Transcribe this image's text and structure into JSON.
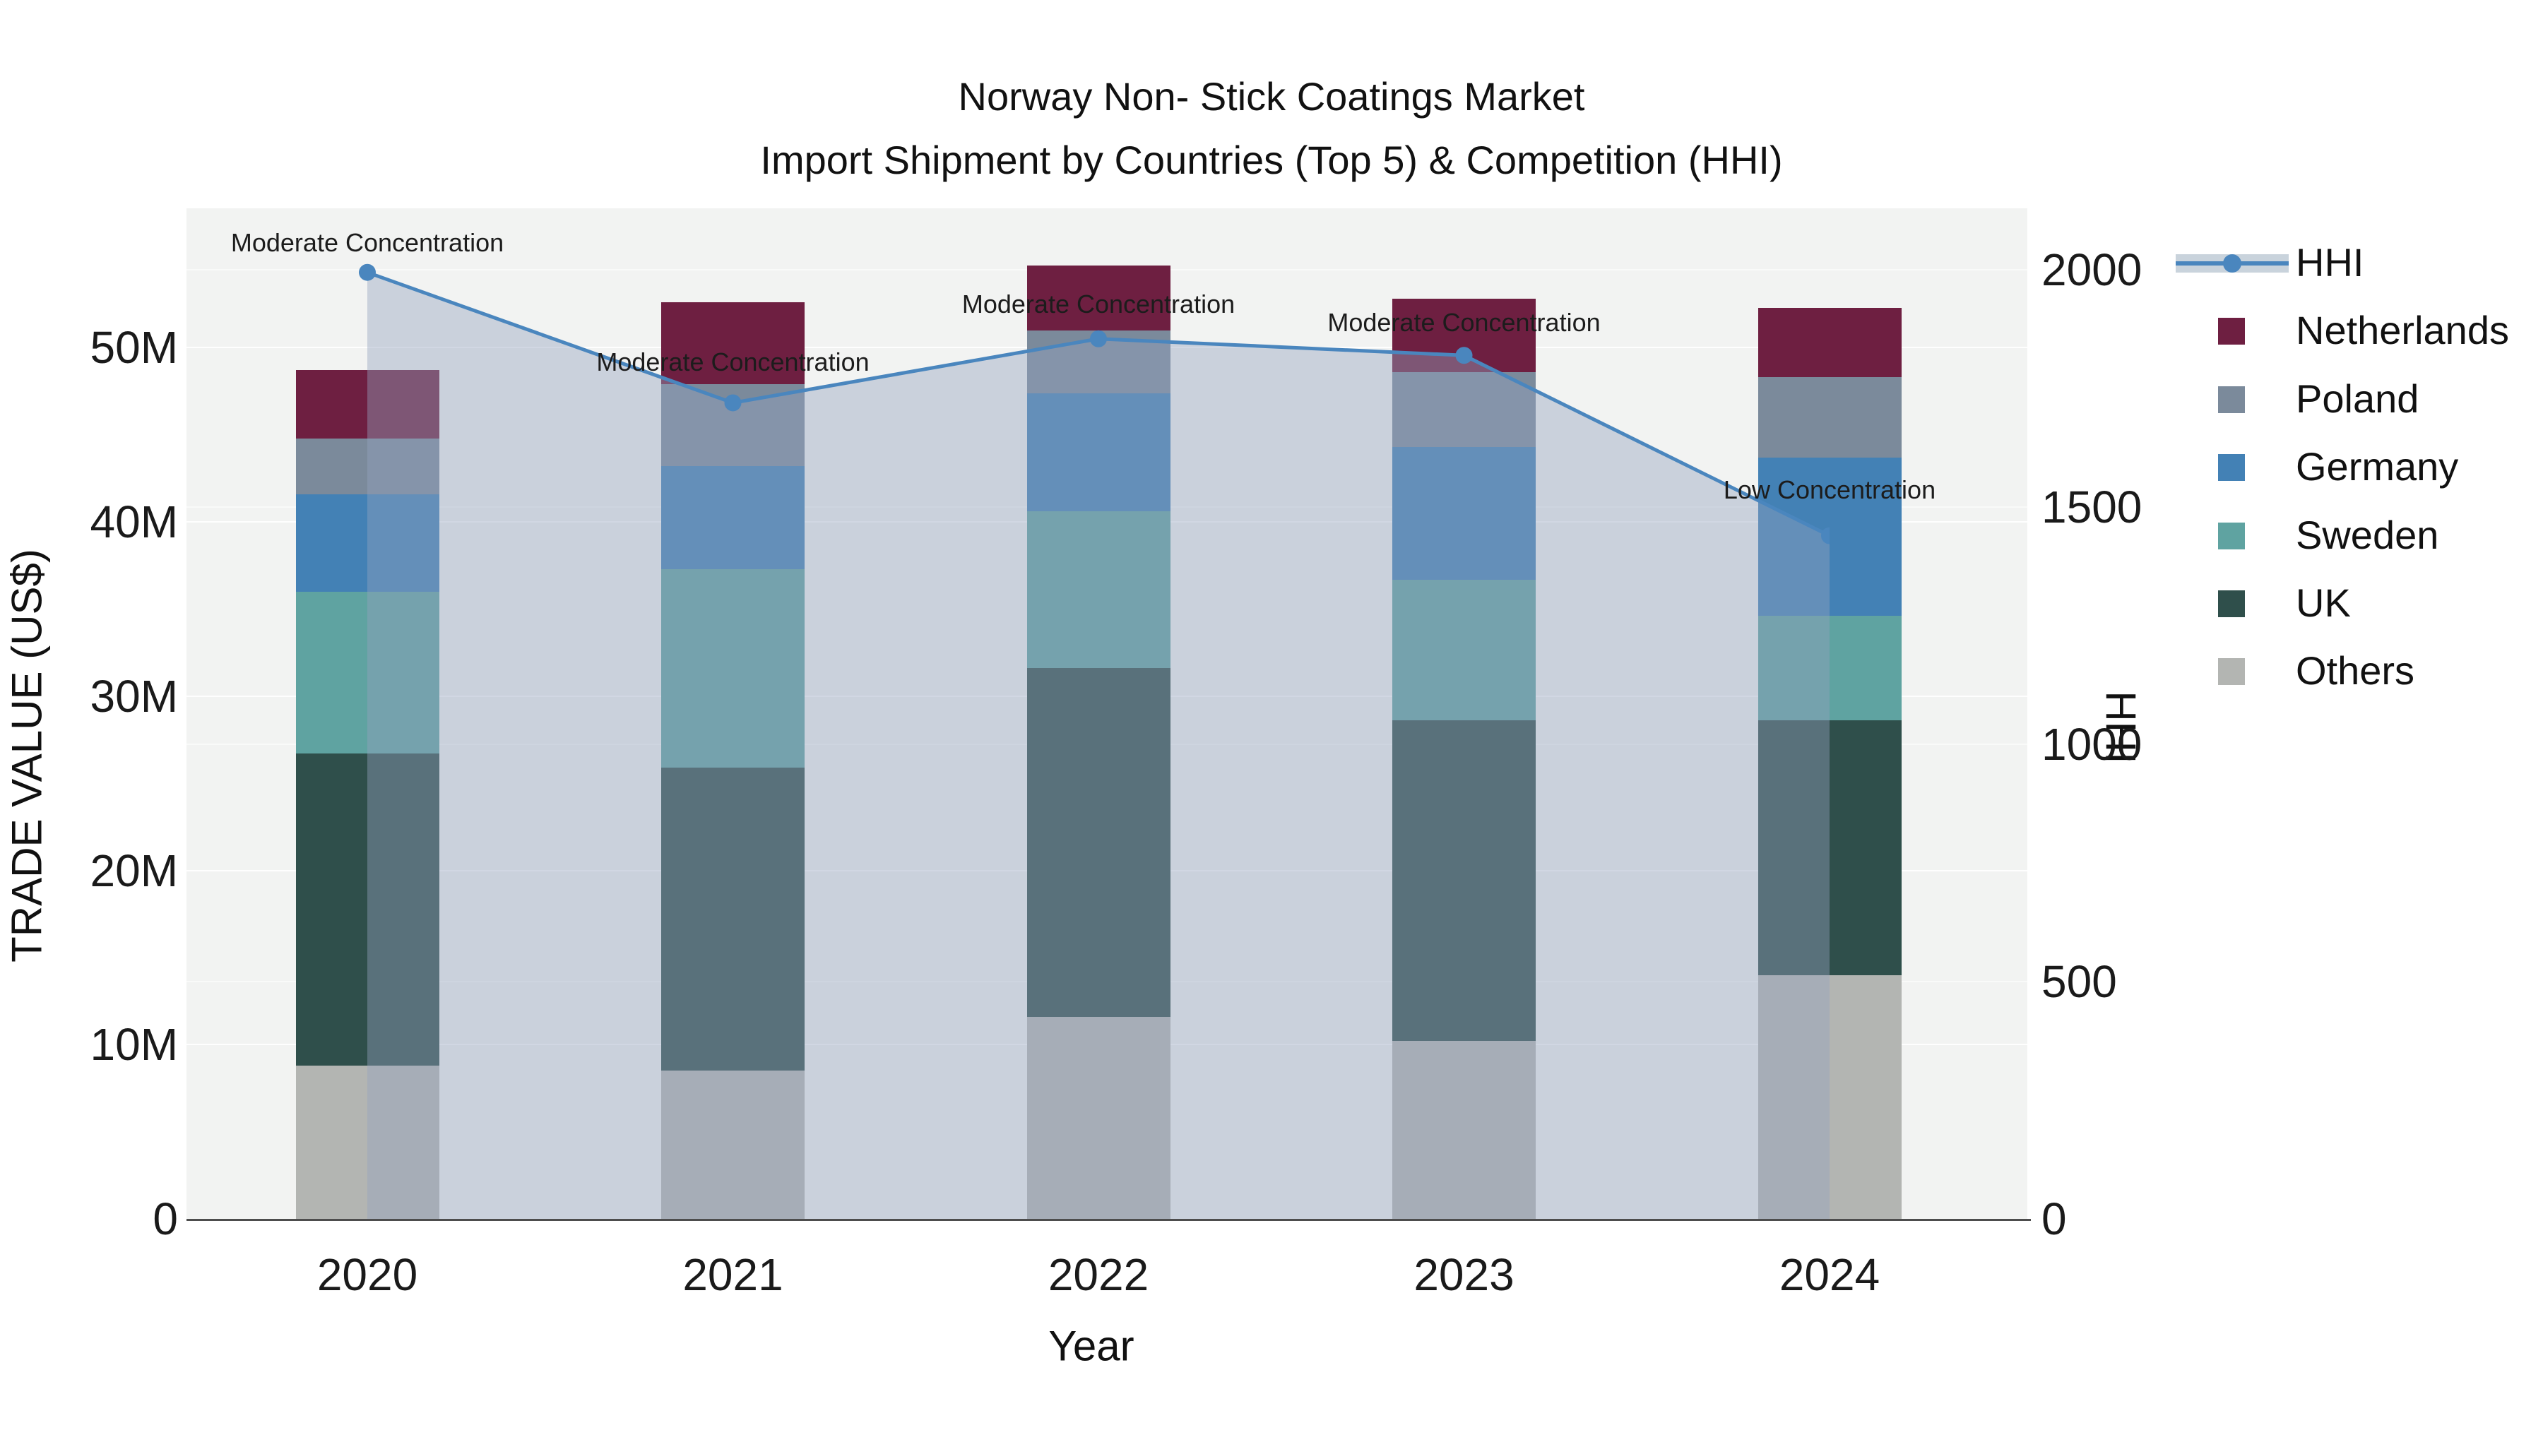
{
  "title": {
    "line1": "Norway Non- Stick Coatings Market",
    "line2": "Import Shipment by Countries (Top 5) & Competition (HHI)"
  },
  "chart_data": {
    "type": "combo-stacked-bar-line",
    "categories": [
      "2020",
      "2021",
      "2022",
      "2023",
      "2024"
    ],
    "bar_unit": "M US$",
    "bar_series": [
      {
        "name": "Others",
        "color": "#b3b5b2",
        "values": [
          8.8,
          8.5,
          11.6,
          10.2,
          14.0
        ]
      },
      {
        "name": "UK",
        "color": "#2f4f4b",
        "values": [
          17.9,
          17.4,
          20.0,
          18.4,
          14.6
        ]
      },
      {
        "name": "Sweden",
        "color": "#5fa3a1",
        "values": [
          9.3,
          11.4,
          9.0,
          8.1,
          6.0
        ]
      },
      {
        "name": "Germany",
        "color": "#4381b5",
        "values": [
          5.6,
          5.9,
          6.8,
          7.6,
          9.1
        ]
      },
      {
        "name": "Poland",
        "color": "#7b8a9b",
        "values": [
          3.2,
          4.7,
          3.6,
          4.3,
          4.6
        ]
      },
      {
        "name": "Netherlands",
        "color": "#6e1f41",
        "values": [
          3.9,
          4.7,
          3.7,
          4.2,
          4.0
        ]
      }
    ],
    "line_series": {
      "name": "HHI",
      "color": "#4a86be",
      "fill": "rgba(148,163,190,0.42)",
      "values": [
        1995,
        1720,
        1855,
        1820,
        1440
      ],
      "annotations": [
        "Moderate Concentration",
        "Moderate Concentration",
        "Moderate Concentration",
        "Moderate Concentration",
        "Low Concentration"
      ]
    },
    "axes": {
      "left": {
        "label": "TRADE VALUE (US$)",
        "ticks": [
          "0",
          "10M",
          "20M",
          "30M",
          "40M",
          "50M"
        ],
        "tick_values": [
          0,
          10,
          20,
          30,
          40,
          50
        ],
        "max": 58
      },
      "right": {
        "label": "HHI",
        "ticks": [
          "0",
          "500",
          "1000",
          "1500",
          "2000"
        ],
        "tick_values": [
          0,
          500,
          1000,
          1500,
          2000
        ],
        "max": 2130
      },
      "x": {
        "label": "Year"
      }
    },
    "legend": {
      "items": [
        "HHI",
        "Netherlands",
        "Poland",
        "Germany",
        "Sweden",
        "UK",
        "Others"
      ]
    }
  }
}
